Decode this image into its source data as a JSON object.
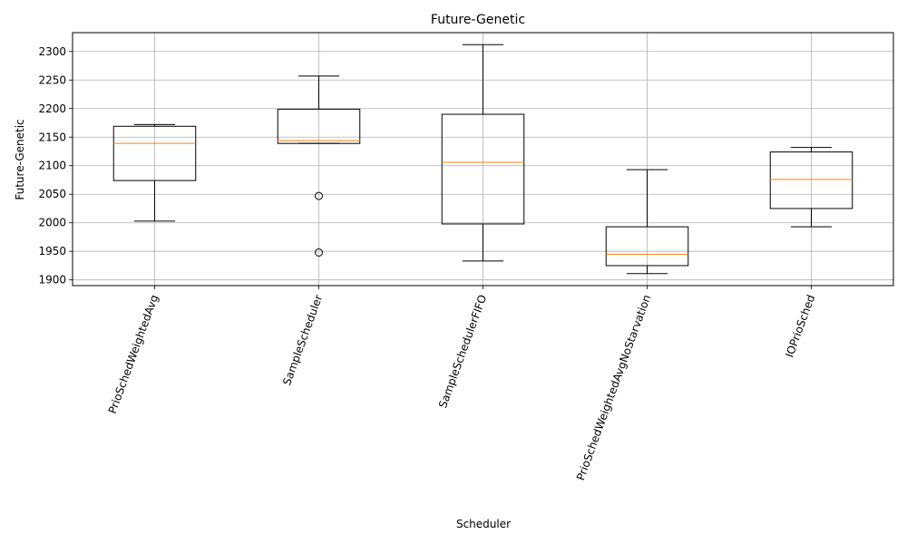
{
  "chart_data": {
    "type": "box",
    "title": "Future-Genetic",
    "xlabel": "Scheduler",
    "ylabel": "Future-Genetic",
    "grid": true,
    "ylim": [
      1890,
      2333
    ],
    "yticks": [
      1900,
      1950,
      2000,
      2050,
      2100,
      2150,
      2200,
      2250,
      2300
    ],
    "categories": [
      "PrioSchedWeightedAvg",
      "SampleScheduler",
      "SampleSchedulerFIFO",
      "PrioSchedWeightedAvgNoStarvation",
      "IOPrioSched"
    ],
    "boxes": [
      {
        "whisker_low": 2003,
        "q1": 2074,
        "median": 2139,
        "q3": 2169,
        "whisker_high": 2172,
        "outliers": []
      },
      {
        "whisker_low": 2139,
        "q1": 2139,
        "median": 2144,
        "q3": 2199,
        "whisker_high": 2257,
        "outliers": [
          2047,
          1948
        ]
      },
      {
        "whisker_low": 1933,
        "q1": 1998,
        "median": 2106,
        "q3": 2190,
        "whisker_high": 2312,
        "outliers": []
      },
      {
        "whisker_low": 1911,
        "q1": 1925,
        "median": 1945,
        "q3": 1993,
        "whisker_high": 2093,
        "outliers": []
      },
      {
        "whisker_low": 1993,
        "q1": 2025,
        "median": 2076,
        "q3": 2124,
        "whisker_high": 2132,
        "outliers": []
      }
    ],
    "colors": {
      "box": "#000000",
      "median": "#ff7f0e",
      "grid": "#b0b0b0"
    }
  }
}
